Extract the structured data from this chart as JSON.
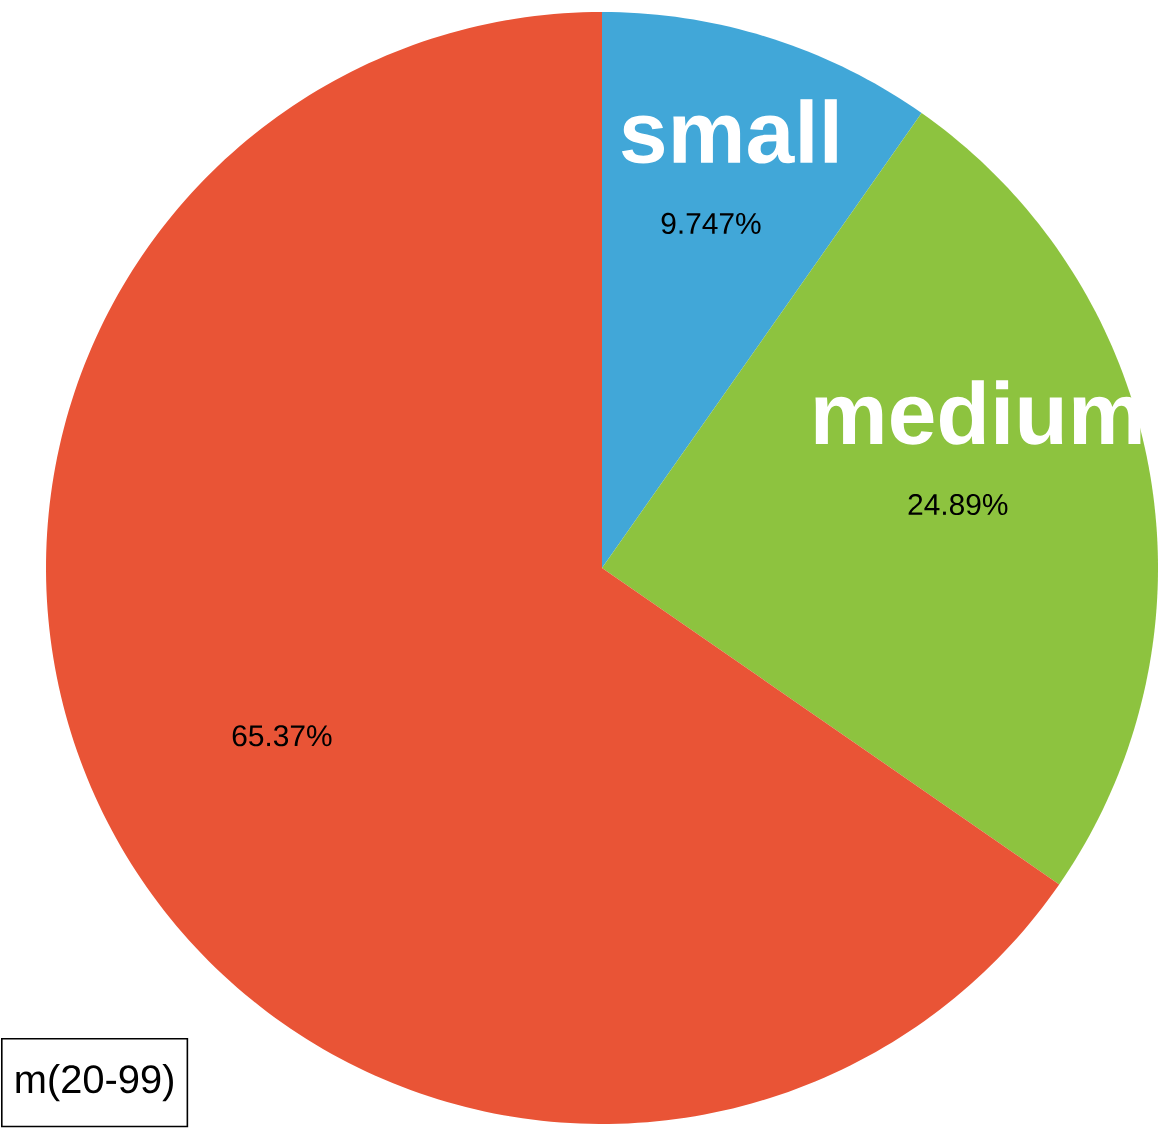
{
  "chart_data": {
    "type": "pie",
    "categories": [
      "small",
      "medium",
      null
    ],
    "values": [
      9.747,
      24.89,
      65.37
    ],
    "colors": [
      "#41a7d8",
      "#8dc33f",
      "#e95436"
    ],
    "value_labels": [
      "9.747%",
      "24.89%",
      "65.37%"
    ],
    "annotations": [
      "m(20-99)"
    ]
  }
}
